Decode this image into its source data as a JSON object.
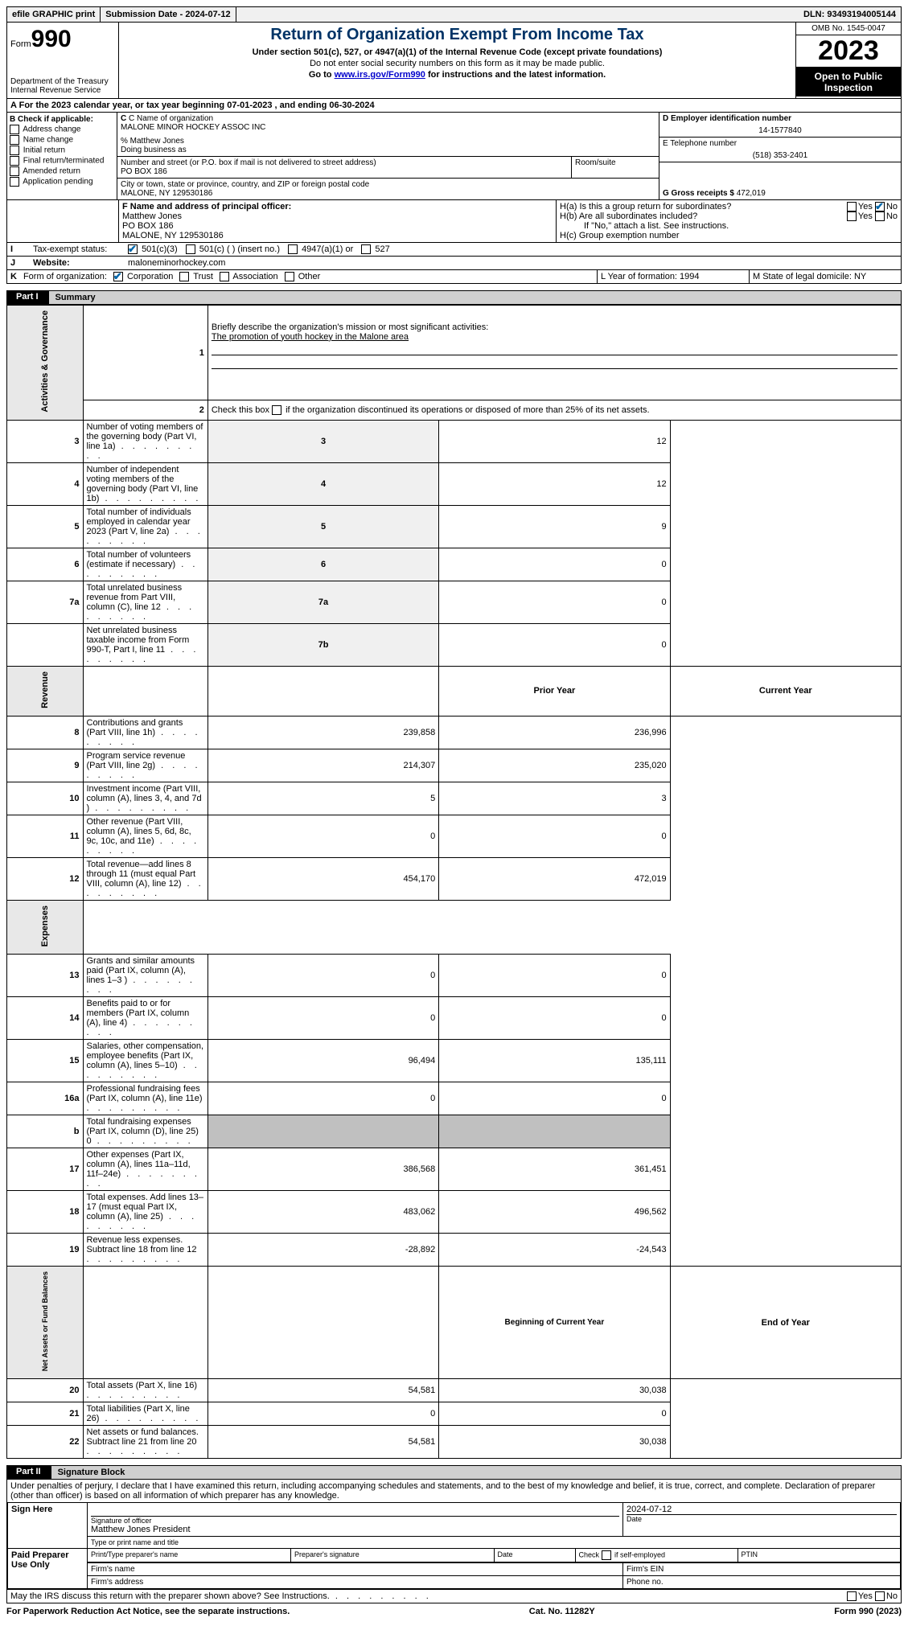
{
  "topbar": {
    "efile": "efile GRAPHIC print",
    "submission": "Submission Date - 2024-07-12",
    "dln": "DLN: 93493194005144"
  },
  "header": {
    "form_label": "Form",
    "form_num": "990",
    "title": "Return of Organization Exempt From Income Tax",
    "sub1": "Under section 501(c), 527, or 4947(a)(1) of the Internal Revenue Code (except private foundations)",
    "sub2": "Do not enter social security numbers on this form as it may be made public.",
    "sub3_pre": "Go to ",
    "sub3_link": "www.irs.gov/Form990",
    "sub3_post": " for instructions and the latest information.",
    "omb": "OMB No. 1545-0047",
    "year": "2023",
    "open": "Open to Public Inspection",
    "dept": "Department of the Treasury\nInternal Revenue Service"
  },
  "line_a": "For the 2023 calendar year, or tax year beginning 07-01-2023   , and ending 06-30-2024",
  "box_b": {
    "title": "B Check if applicable:",
    "opts": [
      "Address change",
      "Name change",
      "Initial return",
      "Final return/terminated",
      "Amended return",
      "Application pending"
    ]
  },
  "box_c": {
    "name_lbl": "C Name of organization",
    "name": "MALONE MINOR HOCKEY ASSOC INC",
    "care_of": "% Matthew Jones",
    "dba_lbl": "Doing business as",
    "addr_lbl": "Number and street (or P.O. box if mail is not delivered to street address)",
    "addr": "PO BOX 186",
    "room_lbl": "Room/suite",
    "city_lbl": "City or town, state or province, country, and ZIP or foreign postal code",
    "city": "MALONE, NY  129530186"
  },
  "box_d": {
    "ein_lbl": "D Employer identification number",
    "ein": "14-1577840",
    "phone_lbl": "E Telephone number",
    "phone": "(518) 353-2401",
    "gross_lbl": "G Gross receipts $",
    "gross": "472,019"
  },
  "box_f": {
    "lbl": "F  Name and address of principal officer:",
    "name": "Matthew Jones",
    "addr": "PO BOX 186",
    "city": "MALONE, NY  129530186"
  },
  "box_h": {
    "ha": "H(a)  Is this a group return for subordinates?",
    "hb": "H(b)  Are all subordinates included?",
    "hb_note": "If \"No,\" attach a list. See instructions.",
    "hc": "H(c)  Group exemption number"
  },
  "row_i_lbl": "Tax-exempt status:",
  "row_i_opts": [
    "501(c)(3)",
    "501(c) (   ) (insert no.)",
    "4947(a)(1) or",
    "527"
  ],
  "row_j_lbl": "Website:",
  "row_j_val": "maloneminorhockey.com",
  "row_k_lbl": "Form of organization:",
  "row_k_opts": [
    "Corporation",
    "Trust",
    "Association",
    "Other"
  ],
  "row_l": "L Year of formation: 1994",
  "row_m": "M State of legal domicile: NY",
  "part1": {
    "tag": "Part I",
    "title": "Summary",
    "q1_lbl": "Briefly describe the organization's mission or most significant activities:",
    "q1_val": "The promotion of youth hockey in the Malone area",
    "q2": "Check this box      if the organization discontinued its operations or disposed of more than 25% of its net assets.",
    "rows_gov": [
      {
        "n": "3",
        "d": "Number of voting members of the governing body (Part VI, line 1a)",
        "c": "3",
        "v": "12"
      },
      {
        "n": "4",
        "d": "Number of independent voting members of the governing body (Part VI, line 1b)",
        "c": "4",
        "v": "12"
      },
      {
        "n": "5",
        "d": "Total number of individuals employed in calendar year 2023 (Part V, line 2a)",
        "c": "5",
        "v": "9"
      },
      {
        "n": "6",
        "d": "Total number of volunteers (estimate if necessary)",
        "c": "6",
        "v": "0"
      },
      {
        "n": "7a",
        "d": "Total unrelated business revenue from Part VIII, column (C), line 12",
        "c": "7a",
        "v": "0"
      },
      {
        "n": "",
        "d": "Net unrelated business taxable income from Form 990-T, Part I, line 11",
        "c": "7b",
        "v": "0"
      }
    ],
    "col_prior": "Prior Year",
    "col_curr": "Current Year",
    "rows_rev": [
      {
        "n": "8",
        "d": "Contributions and grants (Part VIII, line 1h)",
        "p": "239,858",
        "c": "236,996"
      },
      {
        "n": "9",
        "d": "Program service revenue (Part VIII, line 2g)",
        "p": "214,307",
        "c": "235,020"
      },
      {
        "n": "10",
        "d": "Investment income (Part VIII, column (A), lines 3, 4, and 7d )",
        "p": "5",
        "c": "3"
      },
      {
        "n": "11",
        "d": "Other revenue (Part VIII, column (A), lines 5, 6d, 8c, 9c, 10c, and 11e)",
        "p": "0",
        "c": "0"
      },
      {
        "n": "12",
        "d": "Total revenue—add lines 8 through 11 (must equal Part VIII, column (A), line 12)",
        "p": "454,170",
        "c": "472,019"
      }
    ],
    "rows_exp": [
      {
        "n": "13",
        "d": "Grants and similar amounts paid (Part IX, column (A), lines 1–3 )",
        "p": "0",
        "c": "0"
      },
      {
        "n": "14",
        "d": "Benefits paid to or for members (Part IX, column (A), line 4)",
        "p": "0",
        "c": "0"
      },
      {
        "n": "15",
        "d": "Salaries, other compensation, employee benefits (Part IX, column (A), lines 5–10)",
        "p": "96,494",
        "c": "135,111"
      },
      {
        "n": "16a",
        "d": "Professional fundraising fees (Part IX, column (A), line 11e)",
        "p": "0",
        "c": "0"
      },
      {
        "n": "b",
        "d": "Total fundraising expenses (Part IX, column (D), line 25) 0",
        "p": "",
        "c": "",
        "shaded": true
      },
      {
        "n": "17",
        "d": "Other expenses (Part IX, column (A), lines 11a–11d, 11f–24e)",
        "p": "386,568",
        "c": "361,451"
      },
      {
        "n": "18",
        "d": "Total expenses. Add lines 13–17 (must equal Part IX, column (A), line 25)",
        "p": "483,062",
        "c": "496,562"
      },
      {
        "n": "19",
        "d": "Revenue less expenses. Subtract line 18 from line 12",
        "p": "-28,892",
        "c": "-24,543"
      }
    ],
    "col_begin": "Beginning of Current Year",
    "col_end": "End of Year",
    "rows_net": [
      {
        "n": "20",
        "d": "Total assets (Part X, line 16)",
        "p": "54,581",
        "c": "30,038"
      },
      {
        "n": "21",
        "d": "Total liabilities (Part X, line 26)",
        "p": "0",
        "c": "0"
      },
      {
        "n": "22",
        "d": "Net assets or fund balances. Subtract line 21 from line 20",
        "p": "54,581",
        "c": "30,038"
      }
    ],
    "vtabs": [
      "Activities & Governance",
      "Revenue",
      "Expenses",
      "Net Assets or Fund Balances"
    ]
  },
  "part2": {
    "tag": "Part II",
    "title": "Signature Block",
    "decl": "Under penalties of perjury, I declare that I have examined this return, including accompanying schedules and statements, and to the best of my knowledge and belief, it is true, correct, and complete. Declaration of preparer (other than officer) is based on all information of which preparer has any knowledge.",
    "sign_here": "Sign Here",
    "sig_officer_lbl": "Signature of officer",
    "sig_officer": "Matthew Jones  President",
    "sig_date": "2024-07-12",
    "date_lbl": "Date",
    "type_lbl": "Type or print name and title",
    "paid": "Paid Preparer Use Only",
    "prep_name_lbl": "Print/Type preparer's name",
    "prep_sig_lbl": "Preparer's signature",
    "self_emp": "Check       if self-employed",
    "ptin": "PTIN",
    "firm_name": "Firm's name",
    "firm_ein": "Firm's EIN",
    "firm_addr": "Firm's address",
    "firm_phone": "Phone no.",
    "discuss": "May the IRS discuss this return with the preparer shown above? See Instructions."
  },
  "footer": {
    "left": "For Paperwork Reduction Act Notice, see the separate instructions.",
    "center": "Cat. No. 11282Y",
    "right": "Form 990 (2023)"
  }
}
